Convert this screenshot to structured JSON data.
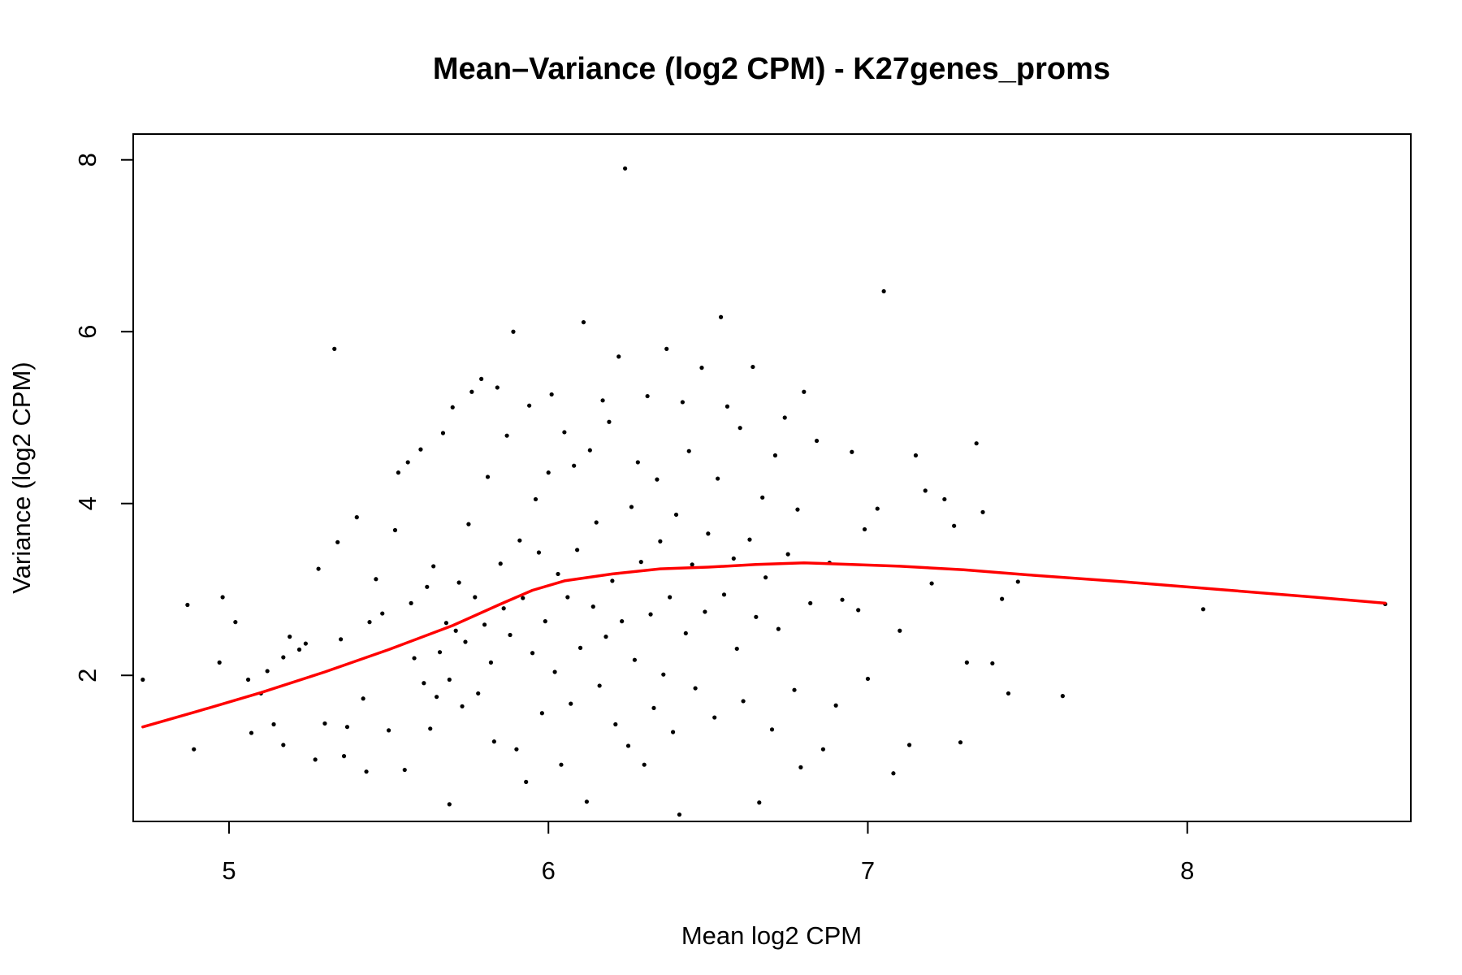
{
  "chart_data": {
    "type": "scatter",
    "title": "Mean–Variance (log2 CPM) - K27genes_proms",
    "xlabel": "Mean log2 CPM",
    "ylabel": "Variance (log2 CPM)",
    "xlim": [
      4.7,
      8.7
    ],
    "ylim": [
      0.3,
      8.3
    ],
    "x_ticks": [
      5,
      6,
      7,
      8
    ],
    "y_ticks": [
      2,
      4,
      6,
      8
    ],
    "x_tick_labels": [
      "5",
      "6",
      "7",
      "8"
    ],
    "y_tick_labels": [
      "2",
      "4",
      "6",
      "8"
    ],
    "grid": false,
    "legend": "none",
    "point_color": "#000000",
    "trend_color": "#ff0000",
    "points": [
      [
        4.73,
        1.95
      ],
      [
        4.87,
        2.82
      ],
      [
        4.89,
        1.14
      ],
      [
        4.97,
        2.15
      ],
      [
        4.98,
        2.91
      ],
      [
        5.02,
        2.62
      ],
      [
        5.06,
        1.95
      ],
      [
        5.07,
        1.33
      ],
      [
        5.1,
        1.79
      ],
      [
        5.12,
        2.05
      ],
      [
        5.14,
        1.43
      ],
      [
        5.17,
        2.21
      ],
      [
        5.17,
        1.19
      ],
      [
        5.19,
        2.45
      ],
      [
        5.22,
        2.3
      ],
      [
        5.24,
        2.37
      ],
      [
        5.27,
        1.02
      ],
      [
        5.28,
        3.24
      ],
      [
        5.3,
        1.44
      ],
      [
        5.33,
        5.8
      ],
      [
        5.34,
        3.55
      ],
      [
        5.35,
        2.42
      ],
      [
        5.36,
        1.06
      ],
      [
        5.37,
        1.4
      ],
      [
        5.4,
        3.84
      ],
      [
        5.42,
        1.73
      ],
      [
        5.43,
        0.88
      ],
      [
        5.44,
        2.62
      ],
      [
        5.46,
        3.12
      ],
      [
        5.48,
        2.72
      ],
      [
        5.5,
        1.36
      ],
      [
        5.52,
        3.69
      ],
      [
        5.53,
        4.36
      ],
      [
        5.55,
        0.9
      ],
      [
        5.56,
        4.48
      ],
      [
        5.57,
        2.84
      ],
      [
        5.58,
        2.2
      ],
      [
        5.6,
        4.63
      ],
      [
        5.61,
        1.91
      ],
      [
        5.62,
        3.03
      ],
      [
        5.63,
        1.38
      ],
      [
        5.64,
        3.27
      ],
      [
        5.65,
        1.75
      ],
      [
        5.66,
        2.27
      ],
      [
        5.67,
        4.82
      ],
      [
        5.68,
        2.61
      ],
      [
        5.69,
        0.5
      ],
      [
        5.69,
        1.95
      ],
      [
        5.7,
        5.12
      ],
      [
        5.71,
        2.52
      ],
      [
        5.72,
        3.08
      ],
      [
        5.73,
        1.64
      ],
      [
        5.74,
        2.39
      ],
      [
        5.75,
        3.76
      ],
      [
        5.76,
        5.3
      ],
      [
        5.77,
        2.91
      ],
      [
        5.78,
        1.79
      ],
      [
        5.79,
        5.45
      ],
      [
        5.8,
        2.59
      ],
      [
        5.81,
        4.31
      ],
      [
        5.82,
        2.15
      ],
      [
        5.83,
        1.23
      ],
      [
        5.84,
        5.35
      ],
      [
        5.85,
        3.3
      ],
      [
        5.86,
        2.78
      ],
      [
        5.87,
        4.79
      ],
      [
        5.88,
        2.47
      ],
      [
        5.89,
        6.0
      ],
      [
        5.9,
        1.14
      ],
      [
        5.91,
        3.57
      ],
      [
        5.92,
        2.9
      ],
      [
        5.93,
        0.76
      ],
      [
        5.94,
        5.14
      ],
      [
        5.95,
        2.26
      ],
      [
        5.96,
        4.05
      ],
      [
        5.97,
        3.43
      ],
      [
        5.98,
        1.56
      ],
      [
        5.99,
        2.63
      ],
      [
        6.0,
        4.36
      ],
      [
        6.01,
        5.27
      ],
      [
        6.02,
        2.04
      ],
      [
        6.03,
        3.18
      ],
      [
        6.04,
        0.96
      ],
      [
        6.05,
        4.83
      ],
      [
        6.06,
        2.91
      ],
      [
        6.07,
        1.67
      ],
      [
        6.08,
        4.44
      ],
      [
        6.09,
        3.46
      ],
      [
        6.1,
        2.32
      ],
      [
        6.11,
        6.11
      ],
      [
        6.12,
        0.53
      ],
      [
        6.13,
        4.62
      ],
      [
        6.14,
        2.8
      ],
      [
        6.15,
        3.78
      ],
      [
        6.16,
        1.88
      ],
      [
        6.17,
        5.2
      ],
      [
        6.18,
        2.45
      ],
      [
        6.19,
        4.95
      ],
      [
        6.2,
        3.1
      ],
      [
        6.21,
        1.43
      ],
      [
        6.22,
        5.71
      ],
      [
        6.23,
        2.63
      ],
      [
        6.24,
        7.9
      ],
      [
        6.25,
        1.18
      ],
      [
        6.26,
        3.96
      ],
      [
        6.27,
        2.18
      ],
      [
        6.28,
        4.48
      ],
      [
        6.29,
        3.32
      ],
      [
        6.3,
        0.96
      ],
      [
        6.31,
        5.25
      ],
      [
        6.32,
        2.71
      ],
      [
        6.33,
        1.62
      ],
      [
        6.34,
        4.28
      ],
      [
        6.35,
        3.56
      ],
      [
        6.36,
        2.01
      ],
      [
        6.37,
        5.8
      ],
      [
        6.38,
        2.91
      ],
      [
        6.39,
        1.34
      ],
      [
        6.4,
        3.87
      ],
      [
        6.41,
        0.38
      ],
      [
        6.42,
        5.18
      ],
      [
        6.43,
        2.49
      ],
      [
        6.44,
        4.61
      ],
      [
        6.45,
        3.29
      ],
      [
        6.46,
        1.85
      ],
      [
        6.48,
        5.58
      ],
      [
        6.49,
        2.74
      ],
      [
        6.5,
        3.65
      ],
      [
        6.52,
        1.51
      ],
      [
        6.53,
        4.29
      ],
      [
        6.54,
        6.17
      ],
      [
        6.55,
        2.94
      ],
      [
        6.56,
        5.13
      ],
      [
        6.58,
        3.36
      ],
      [
        6.59,
        2.31
      ],
      [
        6.6,
        4.88
      ],
      [
        6.61,
        1.7
      ],
      [
        6.63,
        3.58
      ],
      [
        6.64,
        5.59
      ],
      [
        6.65,
        2.68
      ],
      [
        6.66,
        0.52
      ],
      [
        6.67,
        4.07
      ],
      [
        6.68,
        3.14
      ],
      [
        6.7,
        1.37
      ],
      [
        6.71,
        4.56
      ],
      [
        6.72,
        2.54
      ],
      [
        6.74,
        5.0
      ],
      [
        6.75,
        3.41
      ],
      [
        6.77,
        1.83
      ],
      [
        6.78,
        3.93
      ],
      [
        6.79,
        0.93
      ],
      [
        6.8,
        5.3
      ],
      [
        6.82,
        2.84
      ],
      [
        6.84,
        4.73
      ],
      [
        6.86,
        1.14
      ],
      [
        6.88,
        3.31
      ],
      [
        6.9,
        1.65
      ],
      [
        6.92,
        2.88
      ],
      [
        6.95,
        4.6
      ],
      [
        6.97,
        2.76
      ],
      [
        6.99,
        3.7
      ],
      [
        7.0,
        1.96
      ],
      [
        7.03,
        3.94
      ],
      [
        7.05,
        6.47
      ],
      [
        7.08,
        0.86
      ],
      [
        7.1,
        2.52
      ],
      [
        7.13,
        1.19
      ],
      [
        7.15,
        4.56
      ],
      [
        7.18,
        4.15
      ],
      [
        7.2,
        3.07
      ],
      [
        7.24,
        4.05
      ],
      [
        7.27,
        3.74
      ],
      [
        7.29,
        1.22
      ],
      [
        7.31,
        2.15
      ],
      [
        7.34,
        4.7
      ],
      [
        7.36,
        3.9
      ],
      [
        7.39,
        2.14
      ],
      [
        7.42,
        2.89
      ],
      [
        7.44,
        1.79
      ],
      [
        7.47,
        3.09
      ],
      [
        7.61,
        1.76
      ],
      [
        8.05,
        2.77
      ],
      [
        8.62,
        2.83
      ]
    ],
    "trend": [
      [
        4.73,
        1.4
      ],
      [
        4.9,
        1.58
      ],
      [
        5.1,
        1.8
      ],
      [
        5.3,
        2.04
      ],
      [
        5.5,
        2.3
      ],
      [
        5.7,
        2.58
      ],
      [
        5.85,
        2.83
      ],
      [
        5.95,
        2.99
      ],
      [
        6.05,
        3.1
      ],
      [
        6.2,
        3.18
      ],
      [
        6.35,
        3.24
      ],
      [
        6.5,
        3.26
      ],
      [
        6.65,
        3.29
      ],
      [
        6.8,
        3.31
      ],
      [
        6.95,
        3.29
      ],
      [
        7.1,
        3.27
      ],
      [
        7.3,
        3.23
      ],
      [
        7.5,
        3.17
      ],
      [
        7.8,
        3.09
      ],
      [
        8.1,
        3.0
      ],
      [
        8.4,
        2.91
      ],
      [
        8.62,
        2.84
      ]
    ]
  }
}
